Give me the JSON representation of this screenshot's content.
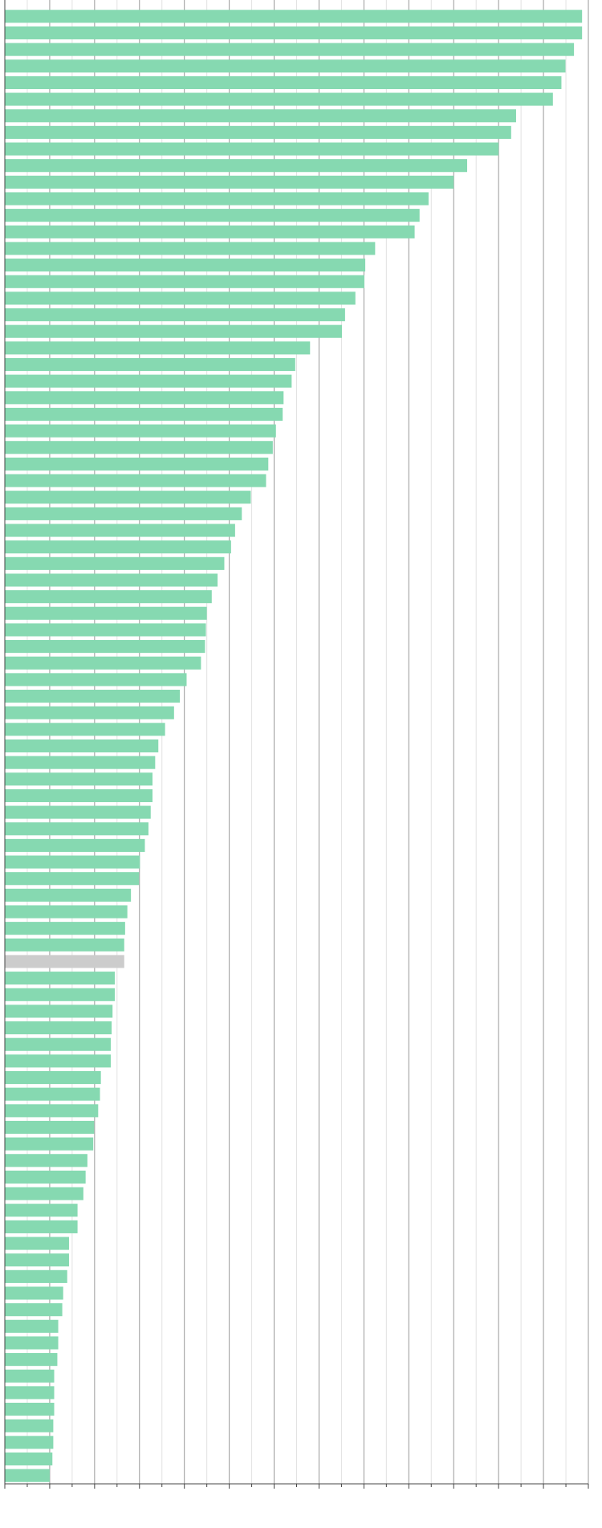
{
  "chart_data": {
    "type": "barh",
    "categories": [
      null,
      null,
      null,
      null,
      null,
      null,
      null,
      null,
      null,
      null,
      null,
      null,
      null,
      null,
      null,
      null,
      null,
      null,
      null,
      null,
      null,
      null,
      null,
      null,
      null,
      null,
      null,
      null,
      null,
      null,
      null,
      null,
      null,
      null,
      null,
      null,
      null,
      null,
      null,
      null,
      null,
      null,
      null,
      null,
      null,
      null,
      null,
      null,
      null,
      null,
      null,
      null,
      null,
      null,
      null,
      null,
      null,
      null,
      null,
      null,
      null,
      null,
      null,
      null,
      null,
      null,
      null,
      null,
      null,
      null,
      null,
      null,
      null,
      null,
      null,
      null,
      null,
      null,
      null,
      null,
      null,
      null,
      null,
      null,
      null,
      null,
      null,
      null,
      null
    ],
    "values": [
      12.86,
      12.86,
      12.68,
      12.49,
      12.4,
      12.21,
      11.39,
      11.28,
      11.0,
      10.3,
      10.0,
      9.44,
      9.24,
      9.13,
      8.25,
      8.03,
      8.01,
      7.81,
      7.58,
      7.51,
      6.8,
      6.47,
      6.39,
      6.21,
      6.19,
      6.04,
      5.97,
      5.87,
      5.82,
      5.48,
      5.28,
      5.13,
      5.04,
      4.89,
      4.74,
      4.61,
      4.5,
      4.48,
      4.46,
      4.37,
      4.05,
      3.9,
      3.77,
      3.57,
      3.42,
      3.35,
      3.29,
      3.29,
      3.25,
      3.2,
      3.12,
      3.01,
      2.99,
      2.81,
      2.73,
      2.68,
      2.66,
      2.66,
      2.45,
      2.45,
      2.4,
      2.38,
      2.36,
      2.36,
      2.14,
      2.12,
      2.08,
      1.99,
      1.97,
      1.84,
      1.8,
      1.75,
      1.62,
      1.62,
      1.43,
      1.43,
      1.39,
      1.3,
      1.28,
      1.19,
      1.19,
      1.17,
      1.1,
      1.1,
      1.1,
      1.08,
      1.08,
      1.06,
      1.0
    ],
    "colors": [
      "#86d9b1",
      "#86d9b1",
      "#86d9b1",
      "#86d9b1",
      "#86d9b1",
      "#86d9b1",
      "#86d9b1",
      "#86d9b1",
      "#86d9b1",
      "#86d9b1",
      "#86d9b1",
      "#86d9b1",
      "#86d9b1",
      "#86d9b1",
      "#86d9b1",
      "#86d9b1",
      "#86d9b1",
      "#86d9b1",
      "#86d9b1",
      "#86d9b1",
      "#86d9b1",
      "#86d9b1",
      "#86d9b1",
      "#86d9b1",
      "#86d9b1",
      "#86d9b1",
      "#86d9b1",
      "#86d9b1",
      "#86d9b1",
      "#86d9b1",
      "#86d9b1",
      "#86d9b1",
      "#86d9b1",
      "#86d9b1",
      "#86d9b1",
      "#86d9b1",
      "#86d9b1",
      "#86d9b1",
      "#86d9b1",
      "#86d9b1",
      "#86d9b1",
      "#86d9b1",
      "#86d9b1",
      "#86d9b1",
      "#86d9b1",
      "#86d9b1",
      "#86d9b1",
      "#86d9b1",
      "#86d9b1",
      "#86d9b1",
      "#86d9b1",
      "#86d9b1",
      "#86d9b1",
      "#86d9b1",
      "#86d9b1",
      "#86d9b1",
      "#86d9b1",
      "#cccccc",
      "#86d9b1",
      "#86d9b1",
      "#86d9b1",
      "#86d9b1",
      "#86d9b1",
      "#86d9b1",
      "#86d9b1",
      "#86d9b1",
      "#86d9b1",
      "#86d9b1",
      "#86d9b1",
      "#86d9b1",
      "#86d9b1",
      "#86d9b1",
      "#86d9b1",
      "#86d9b1",
      "#86d9b1",
      "#86d9b1",
      "#86d9b1",
      "#86d9b1",
      "#86d9b1",
      "#86d9b1",
      "#86d9b1",
      "#86d9b1",
      "#86d9b1",
      "#86d9b1",
      "#86d9b1",
      "#86d9b1",
      "#86d9b1",
      "#86d9b1",
      "#86d9b1"
    ],
    "xlim": [
      0,
      13
    ],
    "xticks": [
      0,
      1,
      2,
      3,
      4,
      5,
      6,
      7,
      8,
      9,
      10,
      11,
      12,
      13
    ],
    "xminorticks": [
      0.5,
      1.5,
      2.5,
      3.5,
      4.5,
      5.5,
      6.5,
      7.5,
      8.5,
      9.5,
      10.5,
      11.5,
      12.5
    ],
    "grid": true
  }
}
